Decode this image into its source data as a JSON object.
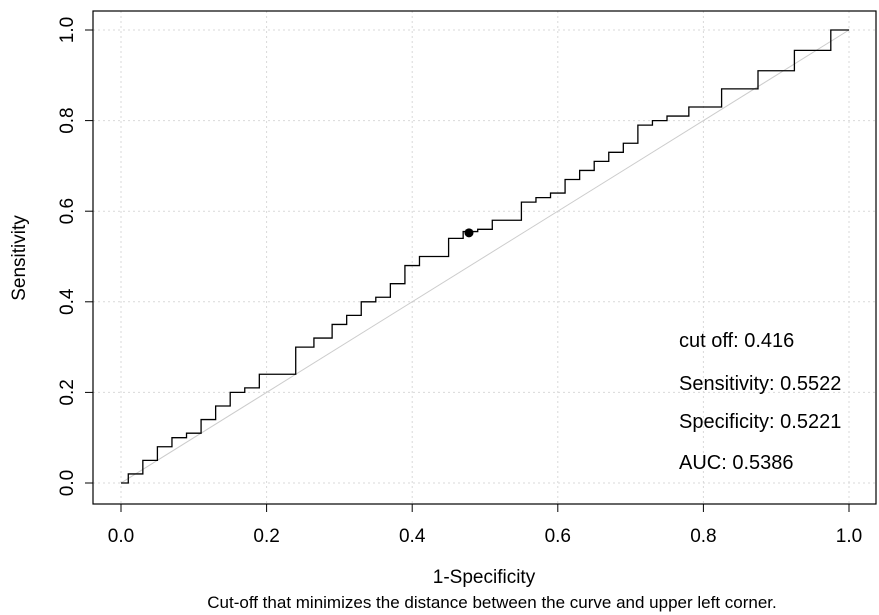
{
  "chart_data": {
    "type": "line",
    "xlabel": "1-Specificity",
    "ylabel": "Sensitivity",
    "caption": "Cut-off that minimizes the distance between the curve and upper left corner.",
    "xlim": [
      0,
      1
    ],
    "ylim": [
      0,
      1
    ],
    "x_ticks": [
      "0.0",
      "0.2",
      "0.4",
      "0.6",
      "0.8",
      "1.0"
    ],
    "y_ticks": [
      "0.0",
      "0.2",
      "0.4",
      "0.6",
      "0.8",
      "1.0"
    ],
    "grid": true,
    "series": [
      {
        "x": [
          0.0,
          0.02,
          0.04,
          0.06,
          0.08,
          0.1,
          0.12,
          0.14,
          0.16,
          0.18,
          0.2,
          0.23,
          0.25,
          0.28,
          0.3,
          0.32,
          0.34,
          0.36,
          0.38,
          0.4,
          0.42,
          0.44,
          0.46,
          0.48,
          0.5,
          0.52,
          0.54,
          0.56,
          0.58,
          0.6,
          0.62,
          0.64,
          0.66,
          0.68,
          0.7,
          0.72,
          0.74,
          0.76,
          0.8,
          0.85,
          0.9,
          0.95,
          1.0
        ],
        "y": [
          0.0,
          0.02,
          0.05,
          0.08,
          0.1,
          0.11,
          0.14,
          0.17,
          0.2,
          0.21,
          0.24,
          0.24,
          0.3,
          0.32,
          0.35,
          0.37,
          0.4,
          0.41,
          0.44,
          0.48,
          0.5,
          0.5,
          0.54,
          0.555,
          0.56,
          0.58,
          0.58,
          0.62,
          0.63,
          0.64,
          0.67,
          0.69,
          0.71,
          0.73,
          0.75,
          0.79,
          0.8,
          0.81,
          0.83,
          0.87,
          0.91,
          0.955,
          1.0
        ]
      }
    ],
    "reference_line": {
      "x": [
        0,
        1
      ],
      "y": [
        0,
        1
      ]
    },
    "cutoff_point": {
      "x": 0.478,
      "y": 0.5522
    },
    "annotations": [
      "cut off: 0.416",
      "Sensitivity: 0.5522",
      "Specificity: 0.5221",
      "AUC: 0.5386"
    ]
  }
}
